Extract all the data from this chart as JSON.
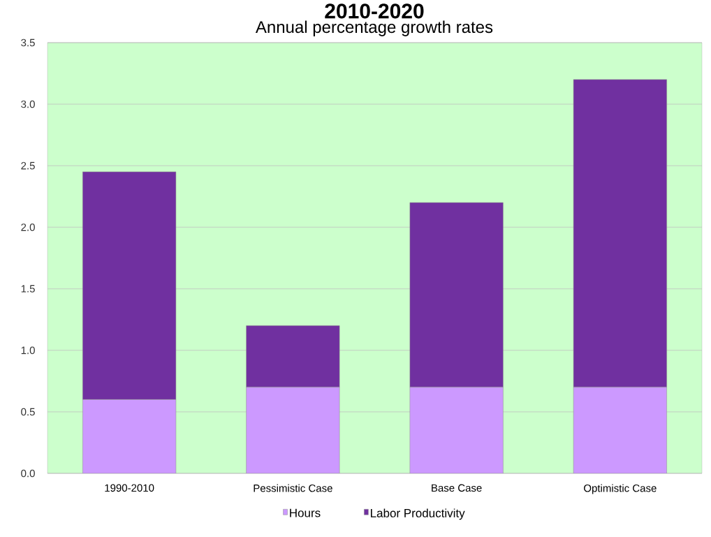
{
  "chart_data": {
    "type": "bar",
    "title": "2010-2020",
    "subtitle": "Annual percentage growth rates",
    "categories": [
      "1990-2010",
      "Pessimistic Case",
      "Base Case",
      "Optimistic Case"
    ],
    "stacked": true,
    "series": [
      {
        "name": "Hours",
        "color": "#cc99ff",
        "values": [
          0.6,
          0.7,
          0.7,
          0.7
        ]
      },
      {
        "name": "Labor Productivity",
        "color": "#7030a0",
        "values": [
          1.85,
          0.5,
          1.5,
          2.5
        ]
      }
    ],
    "ylim": [
      0,
      3.5
    ],
    "yticks": [
      {
        "value": 0,
        "label": "0.0"
      },
      {
        "value": 0.5,
        "label": "0.5"
      },
      {
        "value": 1,
        "label": "1.0"
      },
      {
        "value": 1.5,
        "label": "1.5"
      },
      {
        "value": 2,
        "label": "2.0"
      },
      {
        "value": 2.5,
        "label": "2.5"
      },
      {
        "value": 3,
        "label": "3.0"
      },
      {
        "value": 3.5,
        "label": "3.5"
      }
    ],
    "grid": "y",
    "legend": "bottom"
  }
}
